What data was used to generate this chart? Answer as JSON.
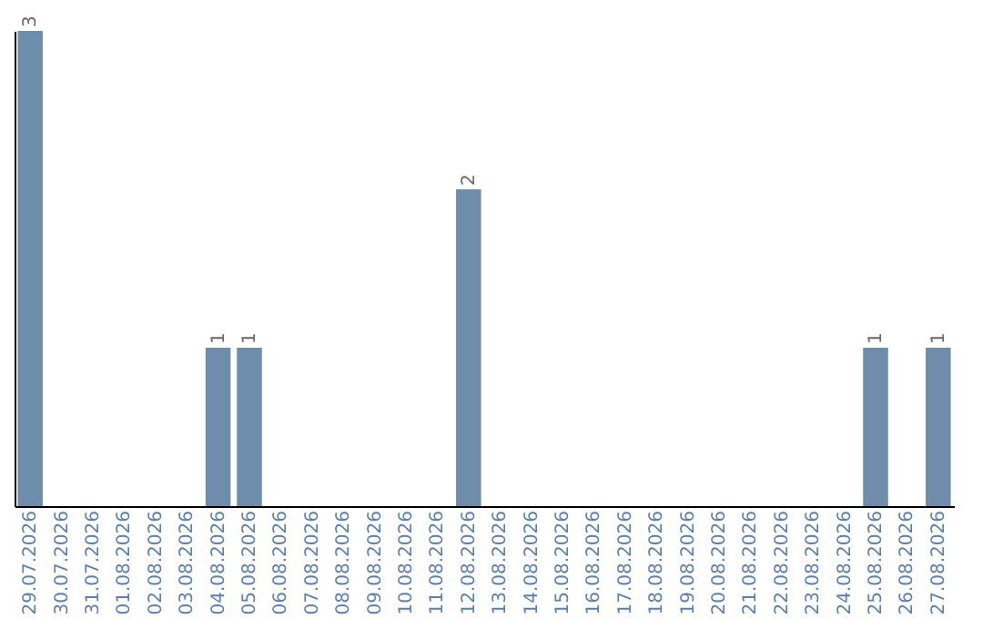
{
  "chart_data": {
    "type": "bar",
    "categories": [
      "29.07.2026",
      "30.07.2026",
      "31.07.2026",
      "01.08.2026",
      "02.08.2026",
      "03.08.2026",
      "04.08.2026",
      "05.08.2026",
      "06.08.2026",
      "07.08.2026",
      "08.08.2026",
      "09.08.2026",
      "10.08.2026",
      "11.08.2026",
      "12.08.2026",
      "13.08.2026",
      "14.08.2026",
      "15.08.2026",
      "16.08.2026",
      "17.08.2026",
      "18.08.2026",
      "19.08.2026",
      "20.08.2026",
      "21.08.2026",
      "22.08.2026",
      "23.08.2026",
      "24.08.2026",
      "25.08.2026",
      "26.08.2026",
      "27.08.2026"
    ],
    "values": [
      3,
      0,
      0,
      0,
      0,
      0,
      1,
      1,
      0,
      0,
      0,
      0,
      0,
      0,
      2,
      0,
      0,
      0,
      0,
      0,
      0,
      0,
      0,
      0,
      0,
      0,
      0,
      1,
      0,
      1
    ],
    "value_labels": [
      "3",
      null,
      null,
      null,
      null,
      null,
      "1",
      "1",
      null,
      null,
      null,
      null,
      null,
      null,
      "2",
      null,
      null,
      null,
      null,
      null,
      null,
      null,
      null,
      null,
      null,
      null,
      null,
      "1",
      null,
      "1"
    ],
    "color": "#6d8dab",
    "grid": false,
    "tick_labels": "x"
  }
}
